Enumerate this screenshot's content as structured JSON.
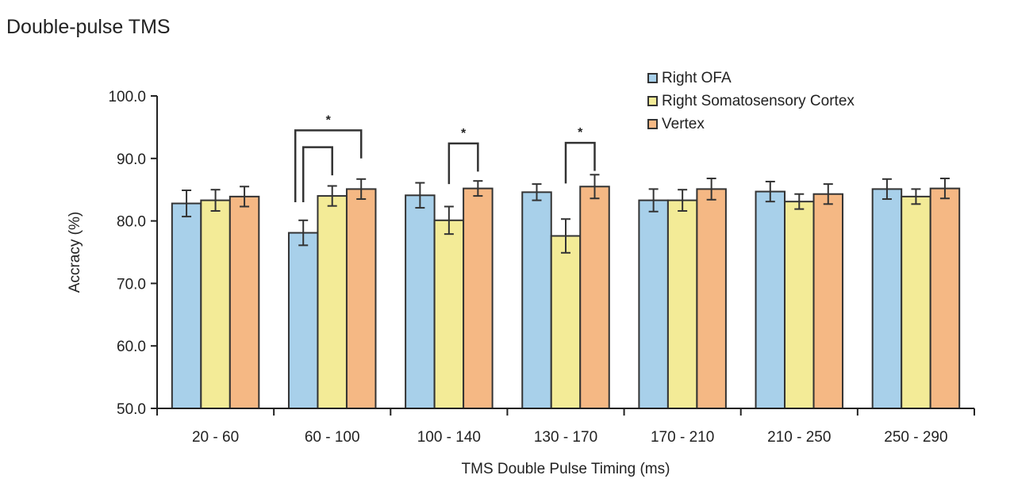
{
  "title": "Double-pulse TMS",
  "chart_data": {
    "type": "bar",
    "title": "Double-pulse TMS",
    "xlabel": "TMS Double Pulse Timing (ms)",
    "ylabel": "Accracy (%)",
    "ylim": [
      50,
      100
    ],
    "yticks": [
      "50.0",
      "60.0",
      "70.0",
      "80.0",
      "90.0",
      "100.0"
    ],
    "ytick_values": [
      50,
      60,
      70,
      80,
      90,
      100
    ],
    "grid": false,
    "legend_position": "top-right",
    "categories": [
      "20 - 60",
      "60 - 100",
      "100 - 140",
      "130 - 170",
      "170 - 210",
      "210 - 250",
      "250 - 290"
    ],
    "series": [
      {
        "name": "Right OFA",
        "color": "#A8D0EA",
        "values": [
          82.8,
          78.1,
          84.1,
          84.6,
          83.3,
          84.7,
          85.1
        ],
        "errors": [
          2.1,
          2.0,
          2.0,
          1.3,
          1.8,
          1.6,
          1.6
        ]
      },
      {
        "name": "Right Somatosensory Cortex",
        "color": "#F3EB97",
        "values": [
          83.3,
          84.0,
          80.1,
          77.6,
          83.3,
          83.1,
          83.9
        ],
        "errors": [
          1.7,
          1.6,
          2.2,
          2.7,
          1.7,
          1.2,
          1.2
        ]
      },
      {
        "name": "Vertex",
        "color": "#F5B884",
        "values": [
          83.9,
          85.1,
          85.2,
          85.5,
          85.1,
          84.3,
          85.2
        ],
        "errors": [
          1.6,
          1.6,
          1.2,
          1.9,
          1.7,
          1.6,
          1.6
        ]
      }
    ],
    "significance": [
      {
        "category": 1,
        "from_series": 0,
        "to_series": 2,
        "label": "*",
        "level": 94.5
      },
      {
        "category": 1,
        "from_series": 0,
        "to_series": 1,
        "label": "",
        "level": 91.8
      },
      {
        "category": 2,
        "from_series": 1,
        "to_series": 2,
        "label": "*",
        "level": 92.4
      },
      {
        "category": 3,
        "from_series": 1,
        "to_series": 2,
        "label": "*",
        "level": 92.5
      }
    ]
  }
}
